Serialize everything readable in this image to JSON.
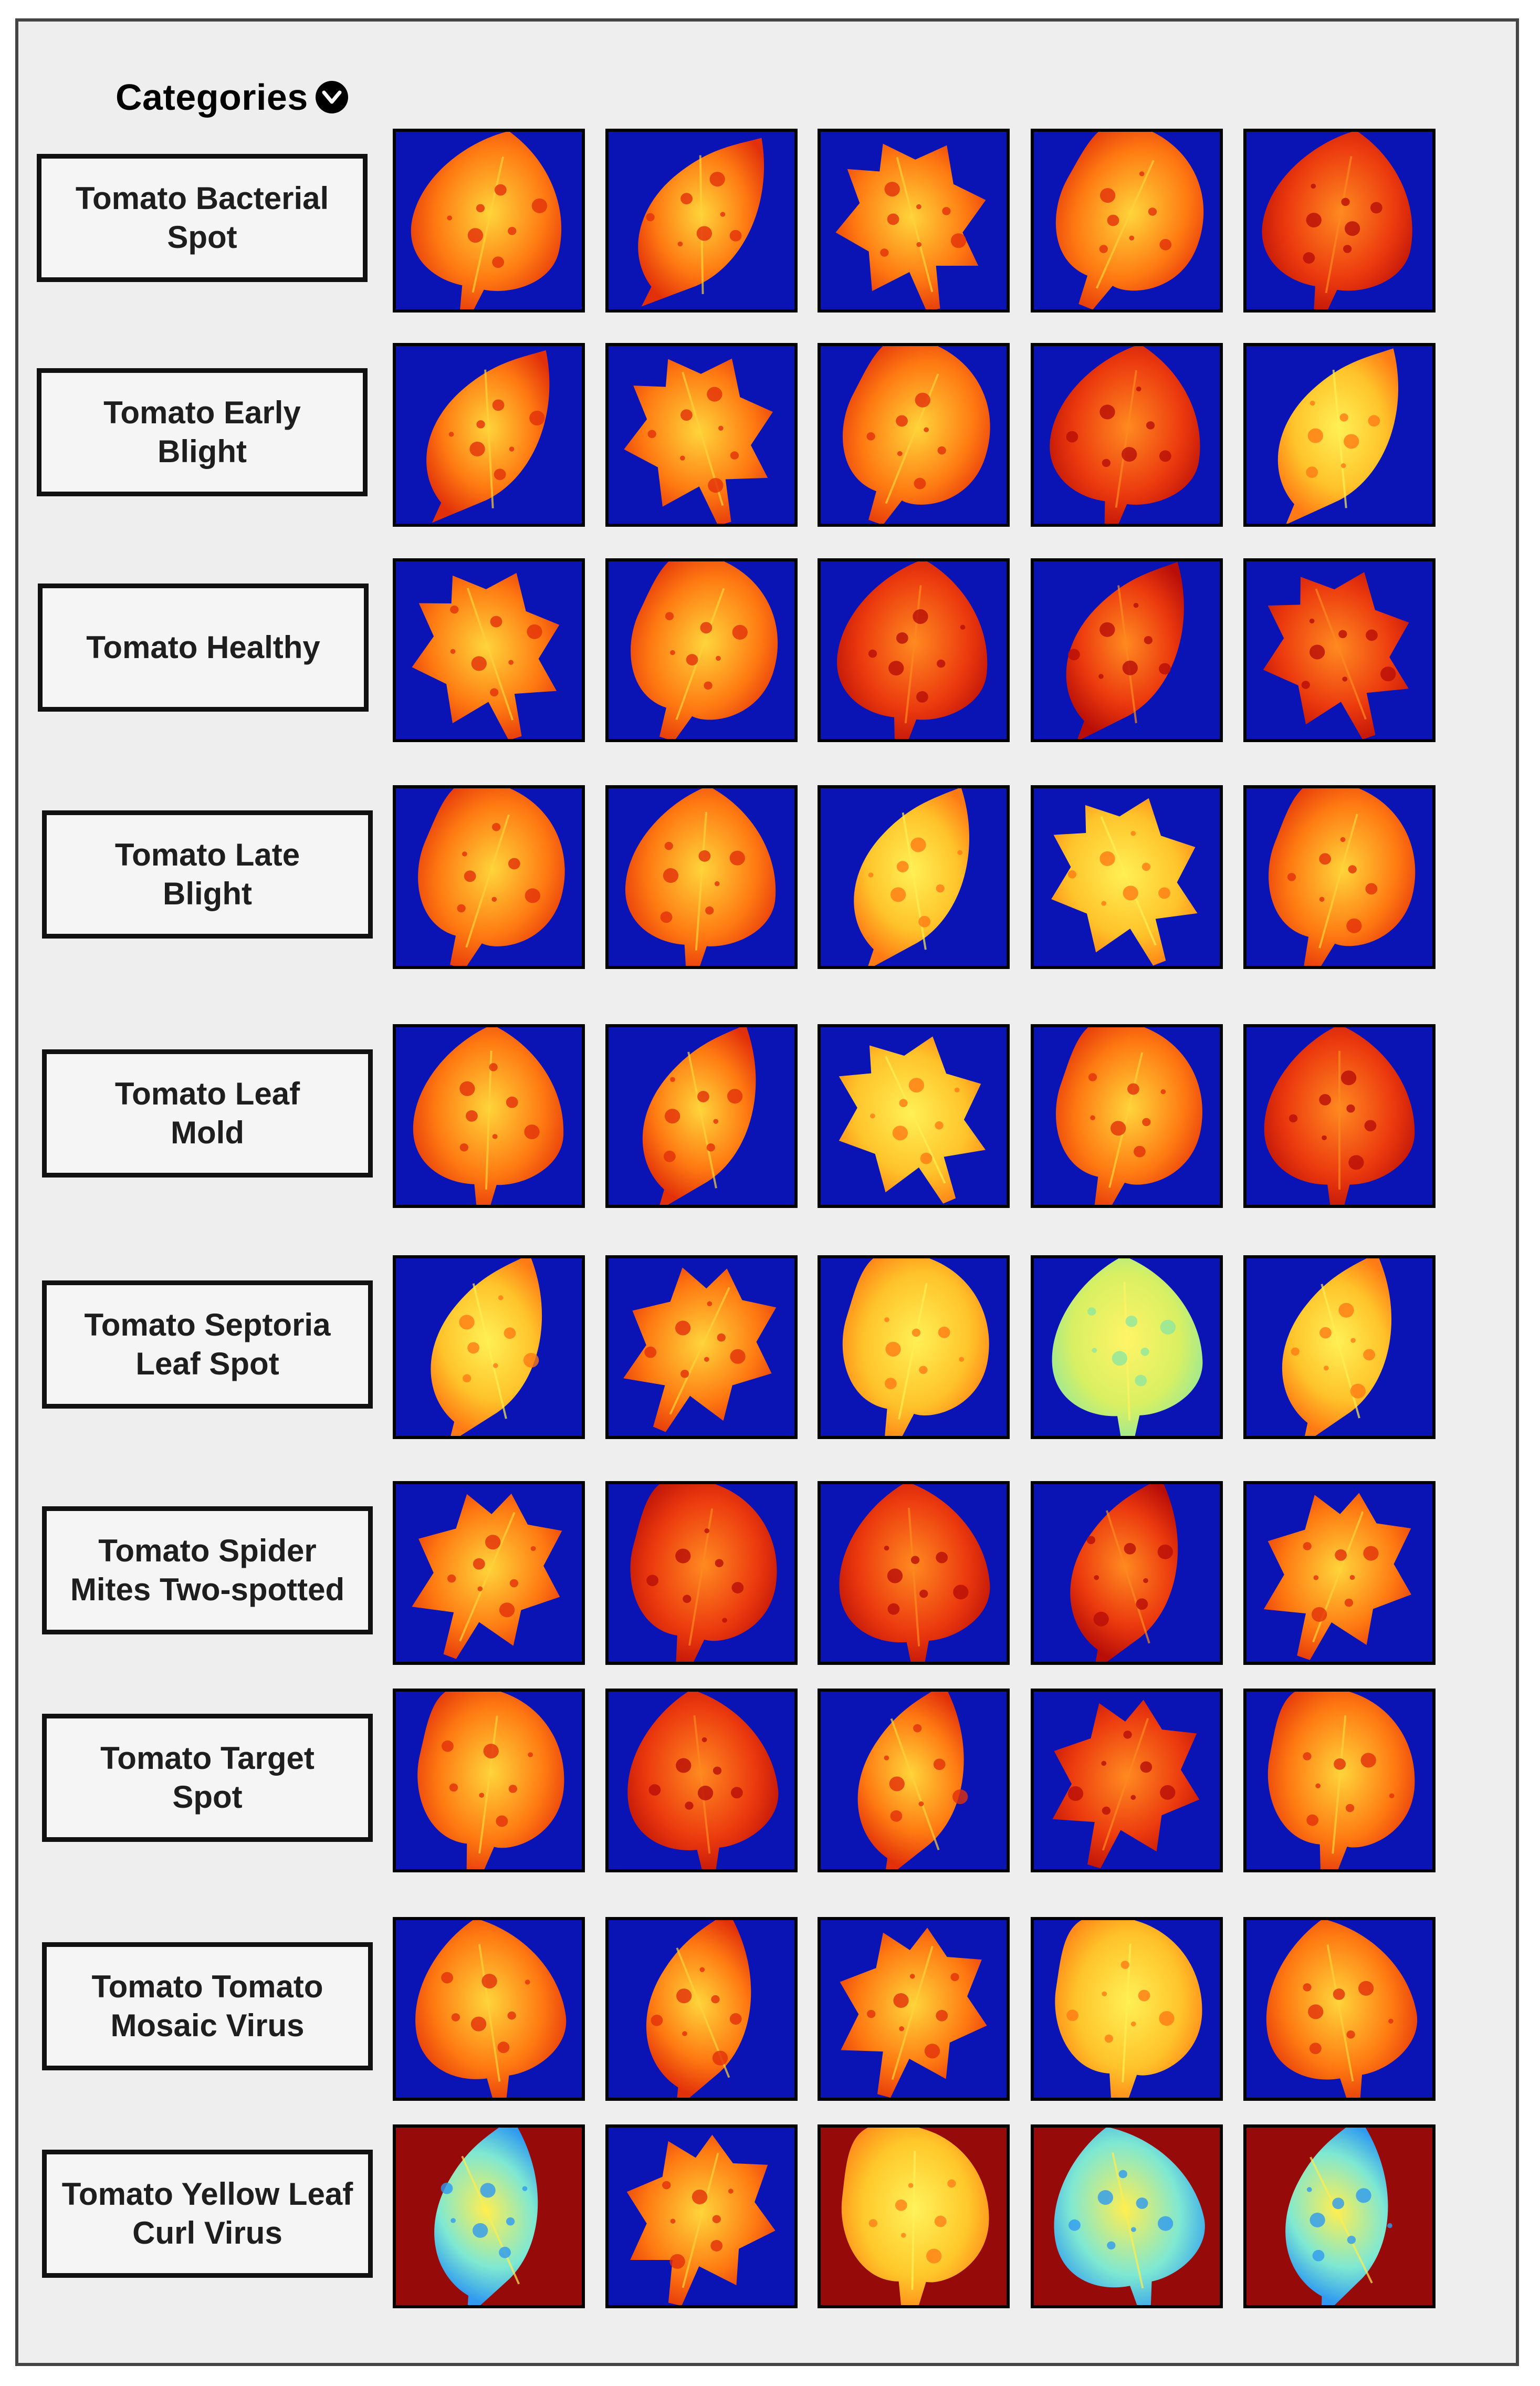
{
  "header": {
    "title": "Categories",
    "icon": "chevron-down-circle-icon"
  },
  "colors": {
    "panel_background": "#eeeeee",
    "tile_blue_background": "#0a14b4",
    "tile_red_background": "#960a0a"
  },
  "categories": [
    {
      "label": "Tomato Bacterial\nSpot",
      "background": "blue",
      "tiles": [
        "orange",
        "orange",
        "orange",
        "orange",
        "red"
      ]
    },
    {
      "label": "Tomato Early\nBlight",
      "background": "blue",
      "tiles": [
        "orange",
        "orange",
        "orange",
        "red",
        "yellow"
      ]
    },
    {
      "label": "Tomato Healthy",
      "background": "blue",
      "tiles": [
        "orange",
        "orange",
        "red",
        "red",
        "red"
      ]
    },
    {
      "label": "Tomato Late\nBlight",
      "background": "blue",
      "tiles": [
        "orange",
        "orange",
        "yellow",
        "yellow",
        "orange"
      ]
    },
    {
      "label": "Tomato Leaf\nMold",
      "background": "blue",
      "tiles": [
        "orange",
        "orange",
        "yellow",
        "orange",
        "red"
      ]
    },
    {
      "label": "Tomato Septoria\nLeaf Spot",
      "background": "blue",
      "tiles": [
        "yellow",
        "orange",
        "yellow",
        "green",
        "yellow"
      ]
    },
    {
      "label": "Tomato Spider\nMites Two-spotted",
      "background": "blue",
      "tiles": [
        "orange",
        "red",
        "red",
        "red",
        "orange"
      ]
    },
    {
      "label": "Tomato Target\nSpot",
      "background": "blue",
      "tiles": [
        "orange",
        "red",
        "orange",
        "red",
        "orange"
      ]
    },
    {
      "label": "Tomato Tomato\nMosaic Virus",
      "background": "blue",
      "tiles": [
        "orange",
        "orange",
        "orange",
        "yellow",
        "orange"
      ]
    },
    {
      "label": "Tomato Yellow Leaf\nCurl Virus",
      "background": "mixed",
      "tiles": [
        "cyan-on-red",
        "orange",
        "yellow-on-red",
        "cyan-on-red",
        "cyan-on-red"
      ]
    }
  ]
}
